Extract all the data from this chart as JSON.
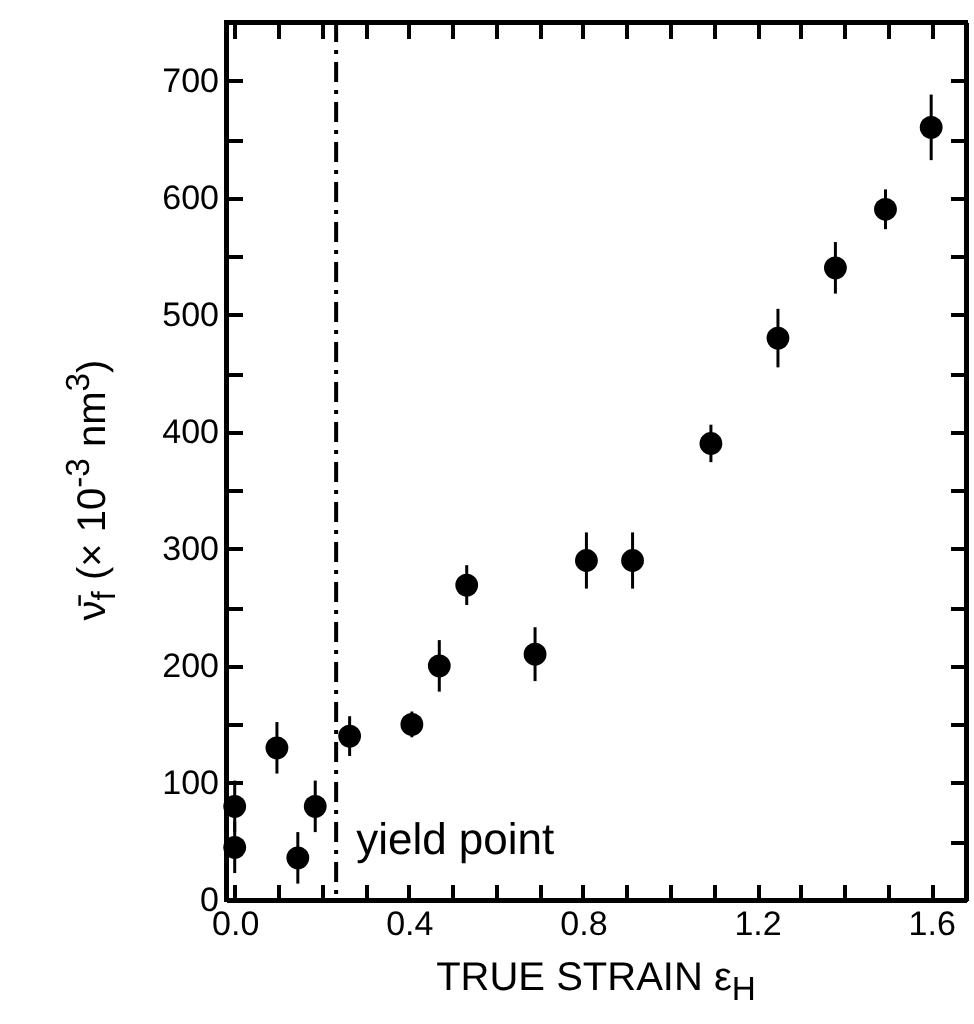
{
  "chart_data": {
    "type": "scatter",
    "xlabel": "TRUE STRAIN  ε$_{H}$",
    "ylabel": "ν̄$_{f}$  (× 10$^{-3}$ nm$^{3}$)",
    "x": [
      0.0,
      0.0,
      0.097,
      0.145,
      0.185,
      0.264,
      0.407,
      0.47,
      0.533,
      0.69,
      0.808,
      0.914,
      1.094,
      1.248,
      1.38,
      1.495,
      1.6
    ],
    "series": [
      {
        "color": "#000000",
        "values": [
          80,
          45,
          130,
          36,
          80,
          140,
          150,
          200,
          269,
          210,
          290,
          290,
          390,
          480,
          540,
          590,
          660
        ],
        "errors": [
          22,
          22,
          22,
          22,
          22,
          17,
          11,
          22,
          17,
          23,
          24,
          24,
          16,
          25,
          22,
          17,
          28
        ]
      }
    ],
    "marker": "circle",
    "xlim": [
      -0.02,
      1.68
    ],
    "ylim": [
      0,
      750
    ],
    "xticks": [
      {
        "value": 0.0,
        "label": "0.0"
      },
      {
        "value": 0.1,
        "label": null
      },
      {
        "value": 0.2,
        "label": null
      },
      {
        "value": 0.3,
        "label": null
      },
      {
        "value": 0.4,
        "label": "0.4"
      },
      {
        "value": 0.5,
        "label": null
      },
      {
        "value": 0.6,
        "label": null
      },
      {
        "value": 0.7,
        "label": null
      },
      {
        "value": 0.8,
        "label": "0.8"
      },
      {
        "value": 0.9,
        "label": null
      },
      {
        "value": 1.0,
        "label": null
      },
      {
        "value": 1.1,
        "label": null
      },
      {
        "value": 1.2,
        "label": "1.2"
      },
      {
        "value": 1.3,
        "label": null
      },
      {
        "value": 1.4,
        "label": null
      },
      {
        "value": 1.5,
        "label": null
      },
      {
        "value": 1.6,
        "label": "1.6"
      }
    ],
    "yticks": [
      0,
      {
        "value": 50,
        "label": null
      },
      100,
      {
        "value": 150,
        "label": null
      },
      200,
      {
        "value": 250,
        "label": null
      },
      300,
      {
        "value": 350,
        "label": null
      },
      400,
      {
        "value": 450,
        "label": null
      },
      500,
      {
        "value": 550,
        "label": null
      },
      600,
      {
        "value": 650,
        "label": null
      },
      700
    ],
    "ref_lines": [
      {
        "axis": "x",
        "value": 0.233,
        "label": "yield point",
        "color": "#000000",
        "line_style": "dashdot"
      }
    ],
    "grid": false
  }
}
